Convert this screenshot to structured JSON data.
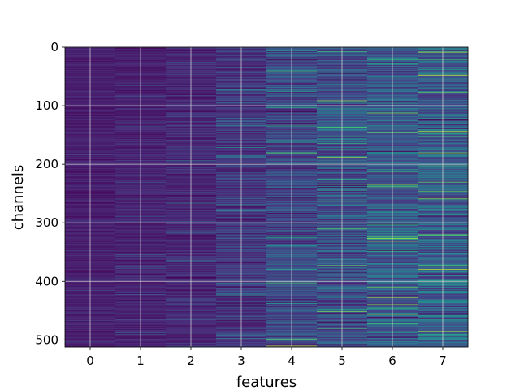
{
  "chart_data": {
    "type": "heatmap",
    "xlabel": "features",
    "ylabel": "channels",
    "x_ticks": [
      "0",
      "1",
      "2",
      "3",
      "4",
      "5",
      "6",
      "7"
    ],
    "y_ticks": [
      "0",
      "100",
      "200",
      "300",
      "400",
      "500"
    ],
    "xlim": [
      -0.5,
      7.5
    ],
    "ylim": [
      512,
      0
    ],
    "y_inverted": true,
    "grid": true,
    "colormap": "viridis",
    "n_rows": 512,
    "n_cols": 8,
    "column_mean_intensity": [
      0.08,
      0.09,
      0.11,
      0.16,
      0.22,
      0.25,
      0.28,
      0.3
    ],
    "column_spread": [
      0.05,
      0.06,
      0.08,
      0.12,
      0.16,
      0.17,
      0.18,
      0.19
    ],
    "highlight_bands": [
      {
        "x": 4,
        "y": 402,
        "value": 0.72
      },
      {
        "x": 4,
        "y": 498,
        "value": 0.75
      },
      {
        "x": 4,
        "y": 510,
        "value": 0.88
      },
      {
        "x": 5,
        "y": 188,
        "value": 0.92
      },
      {
        "x": 5,
        "y": 225,
        "value": 0.62
      },
      {
        "x": 5,
        "y": 152,
        "value": 0.6
      },
      {
        "x": 6,
        "y": 112,
        "value": 0.8
      },
      {
        "x": 6,
        "y": 410,
        "value": 0.82
      },
      {
        "x": 6,
        "y": 427,
        "value": 0.95
      },
      {
        "x": 6,
        "y": 233,
        "value": 0.62
      },
      {
        "x": 7,
        "y": 47,
        "value": 0.95
      },
      {
        "x": 7,
        "y": 143,
        "value": 0.85
      },
      {
        "x": 7,
        "y": 320,
        "value": 0.78
      },
      {
        "x": 7,
        "y": 485,
        "value": 0.9
      },
      {
        "x": 7,
        "y": 372,
        "value": 0.7
      }
    ]
  }
}
